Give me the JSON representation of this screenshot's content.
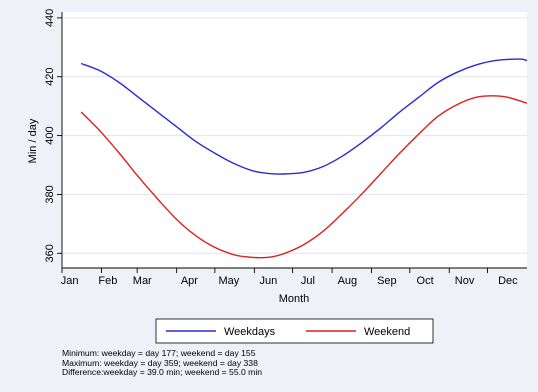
{
  "chart_data": {
    "type": "line",
    "title": "",
    "xlabel": "Month",
    "ylabel": "Min / day",
    "x_ticks": [
      "Jan",
      "Feb",
      "Mar",
      "Apr",
      "May",
      "Jun",
      "Jul",
      "Aug",
      "Sep",
      "Oct",
      "Nov",
      "Dec"
    ],
    "y_ticks": [
      360,
      380,
      400,
      420,
      440
    ],
    "ylim": [
      355,
      442
    ],
    "xlim": [
      0,
      365
    ],
    "grid": "horizontal",
    "legend_placement": "bottom",
    "series": [
      {
        "name": "Weekdays",
        "color": "#2b2bd6",
        "x": [
          15,
          30,
          45,
          60,
          75,
          90,
          105,
          120,
          135,
          150,
          165,
          177,
          190,
          205,
          220,
          235,
          250,
          265,
          280,
          295,
          310,
          325,
          340,
          359,
          365
        ],
        "y": [
          424.5,
          422,
          418,
          413,
          408,
          403,
          398,
          394,
          390.5,
          388,
          387,
          387,
          387.5,
          389.5,
          393,
          397.5,
          402.5,
          408,
          413,
          418,
          421.5,
          424,
          425.5,
          426,
          425.5
        ]
      },
      {
        "name": "Weekend",
        "color": "#dd2020",
        "x": [
          15,
          30,
          45,
          60,
          75,
          90,
          105,
          120,
          135,
          145,
          155,
          165,
          175,
          190,
          205,
          220,
          235,
          250,
          265,
          280,
          295,
          310,
          325,
          338,
          350,
          365
        ],
        "y": [
          408,
          401.5,
          394,
          386,
          378.5,
          371.5,
          366,
          362,
          359.5,
          358.8,
          358.5,
          358.8,
          360,
          363,
          367.5,
          373.5,
          380,
          387,
          394,
          400.5,
          406.5,
          410.5,
          413,
          413.5,
          413,
          411
        ]
      }
    ]
  },
  "notes": {
    "line1": "Minimum:  weekday = day 177;  weekend = day 155",
    "line2": "Maximum: weekday = day 359;  weekend = day 338",
    "line3": "Difference:weekday = 39.0 min; weekend = 55.0 min"
  }
}
